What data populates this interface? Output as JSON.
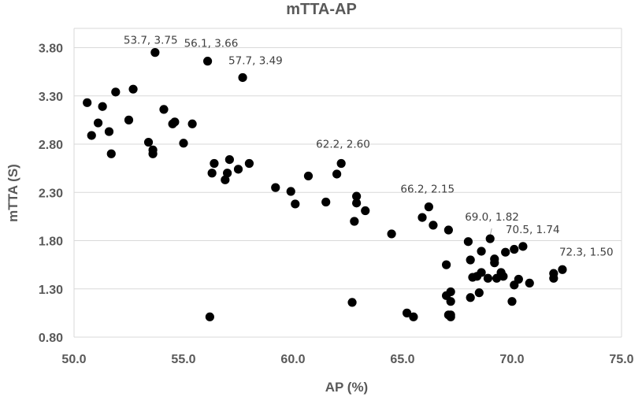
{
  "chart_data": {
    "type": "scatter",
    "title": "mTTA-AP",
    "xlabel": "AP (%)",
    "ylabel": "mTTA (S)",
    "xlim": [
      50.0,
      75.0
    ],
    "ylim": [
      0.8,
      4.0
    ],
    "x_ticks": [
      "50.0",
      "55.0",
      "60.0",
      "65.0",
      "70.0",
      "75.0"
    ],
    "y_ticks": [
      "0.80",
      "1.30",
      "1.80",
      "2.30",
      "2.80",
      "3.30",
      "3.80"
    ],
    "grid": "horizontal",
    "marker_color": "#000000",
    "points": [
      [
        50.6,
        3.23
      ],
      [
        50.8,
        2.89
      ],
      [
        51.1,
        3.02
      ],
      [
        51.3,
        3.19
      ],
      [
        51.6,
        2.93
      ],
      [
        51.7,
        2.7
      ],
      [
        51.9,
        3.34
      ],
      [
        52.5,
        3.05
      ],
      [
        52.7,
        3.37
      ],
      [
        53.4,
        2.82
      ],
      [
        53.6,
        2.74
      ],
      [
        53.6,
        2.7
      ],
      [
        53.7,
        3.75
      ],
      [
        54.1,
        3.16
      ],
      [
        54.5,
        3.01
      ],
      [
        54.6,
        3.03
      ],
      [
        55.0,
        2.81
      ],
      [
        55.4,
        3.01
      ],
      [
        56.1,
        3.66
      ],
      [
        56.2,
        1.01
      ],
      [
        56.3,
        2.5
      ],
      [
        56.4,
        2.6
      ],
      [
        56.9,
        2.43
      ],
      [
        57.1,
        2.64
      ],
      [
        57.0,
        2.5
      ],
      [
        57.5,
        2.54
      ],
      [
        57.7,
        3.49
      ],
      [
        58.0,
        2.6
      ],
      [
        59.2,
        2.35
      ],
      [
        59.9,
        2.31
      ],
      [
        60.1,
        2.18
      ],
      [
        60.7,
        2.47
      ],
      [
        61.5,
        2.2
      ],
      [
        62.0,
        2.49
      ],
      [
        62.2,
        2.6
      ],
      [
        62.7,
        1.16
      ],
      [
        62.8,
        2.0
      ],
      [
        62.9,
        2.19
      ],
      [
        62.9,
        2.26
      ],
      [
        63.3,
        2.11
      ],
      [
        64.5,
        1.87
      ],
      [
        65.2,
        1.05
      ],
      [
        65.5,
        1.01
      ],
      [
        65.9,
        2.04
      ],
      [
        66.2,
        2.15
      ],
      [
        66.4,
        1.96
      ],
      [
        67.0,
        1.55
      ],
      [
        67.0,
        1.23
      ],
      [
        67.1,
        1.91
      ],
      [
        67.1,
        1.03
      ],
      [
        67.2,
        1.17
      ],
      [
        67.2,
        1.01
      ],
      [
        67.2,
        1.03
      ],
      [
        67.2,
        1.27
      ],
      [
        68.0,
        1.79
      ],
      [
        68.1,
        1.6
      ],
      [
        68.1,
        1.21
      ],
      [
        68.2,
        1.42
      ],
      [
        68.4,
        1.43
      ],
      [
        68.5,
        1.26
      ],
      [
        68.6,
        1.47
      ],
      [
        68.6,
        1.69
      ],
      [
        68.9,
        1.41
      ],
      [
        69.0,
        1.82
      ],
      [
        69.2,
        1.61
      ],
      [
        69.2,
        1.57
      ],
      [
        69.3,
        1.41
      ],
      [
        69.5,
        1.47
      ],
      [
        69.6,
        1.43
      ],
      [
        69.7,
        1.68
      ],
      [
        70.0,
        1.17
      ],
      [
        70.1,
        1.71
      ],
      [
        70.1,
        1.34
      ],
      [
        70.3,
        1.4
      ],
      [
        70.5,
        1.74
      ],
      [
        70.8,
        1.36
      ],
      [
        71.9,
        1.41
      ],
      [
        71.9,
        1.46
      ],
      [
        72.3,
        1.5
      ]
    ],
    "annotations": [
      {
        "text": "53.7, 3.75",
        "x": 53.7,
        "y": 3.75
      },
      {
        "text": "56.1, 3.66",
        "x": 56.1,
        "y": 3.66
      },
      {
        "text": "57.7, 3.49",
        "x": 57.7,
        "y": 3.49
      },
      {
        "text": "62.2, 2.60",
        "x": 62.2,
        "y": 2.6
      },
      {
        "text": "66.2, 2.15",
        "x": 66.2,
        "y": 2.15
      },
      {
        "text": "69.0, 1.82",
        "x": 69.0,
        "y": 1.82
      },
      {
        "text": "70.5, 1.74",
        "x": 70.5,
        "y": 1.74
      },
      {
        "text": "72.3, 1.50",
        "x": 72.3,
        "y": 1.5
      }
    ]
  }
}
